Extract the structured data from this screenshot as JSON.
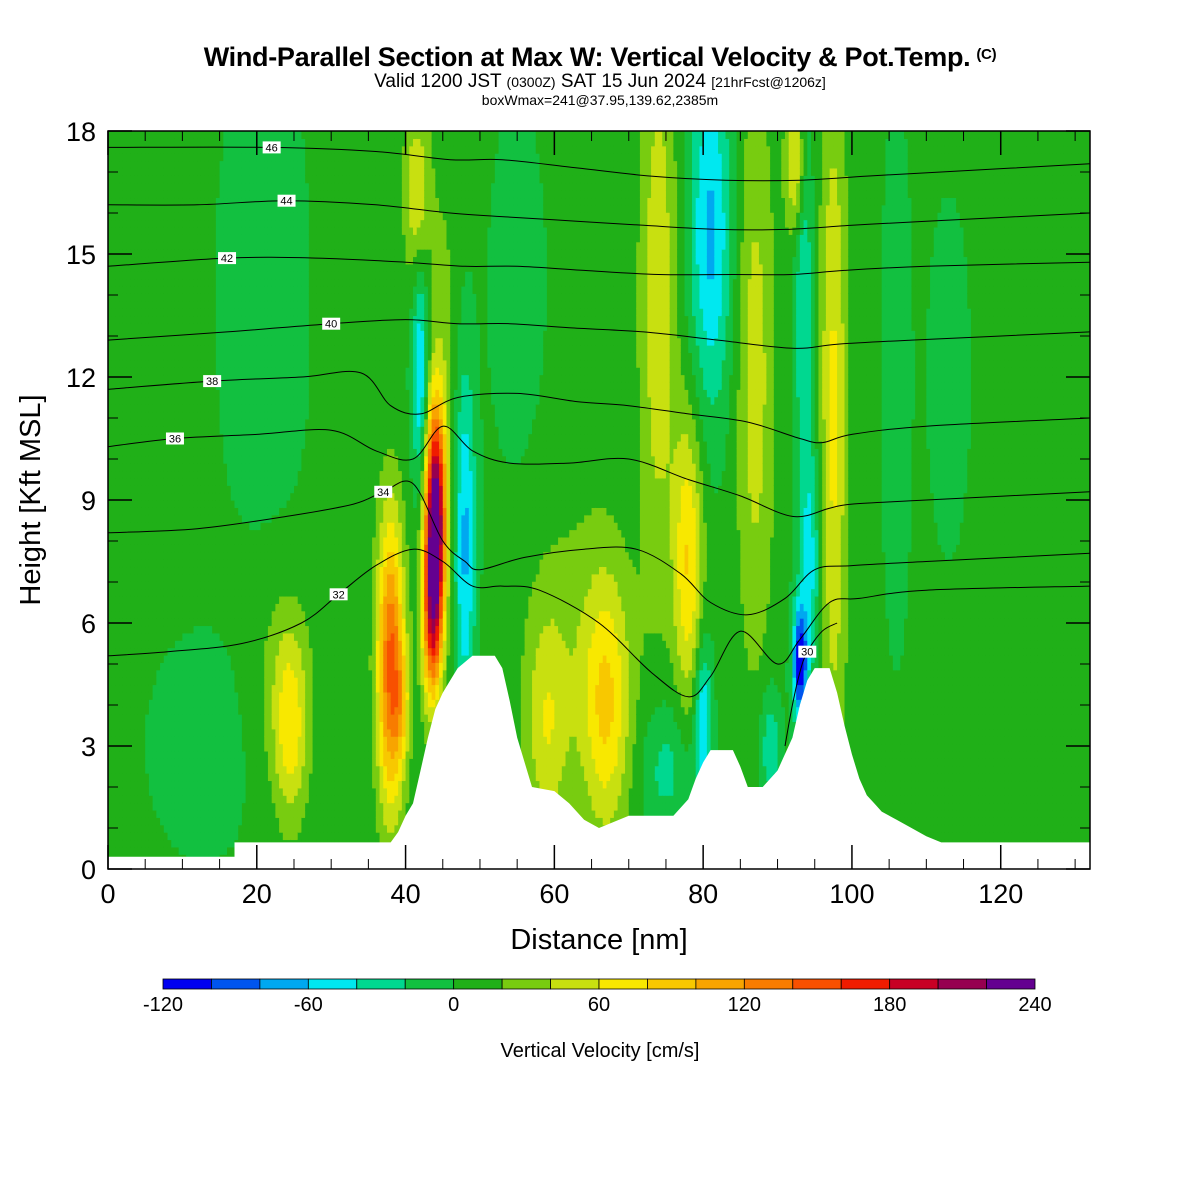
{
  "header": {
    "title": "Wind-Parallel Section at Max W: Vertical Velocity & Pot.Temp.",
    "title_mark": "(C)",
    "valid_prefix": "Valid 1200 JST",
    "valid_utc": "(0300Z)",
    "valid_date": "SAT 15 Jun 2024",
    "forecast": "[21hrFcst@1206z]",
    "box_info": "boxWmax=241@37.95,139.62,2385m"
  },
  "chart_data": {
    "type": "heatmap",
    "xlabel": "Distance [nm]",
    "ylabel": "Height [Kft MSL]",
    "xlim": [
      0,
      132
    ],
    "ylim": [
      0,
      18
    ],
    "x_ticks": [
      "0",
      "20",
      "40",
      "60",
      "80",
      "100",
      "120"
    ],
    "x_tick_values": [
      0,
      20,
      40,
      60,
      80,
      100,
      120
    ],
    "y_ticks": [
      "0",
      "3",
      "6",
      "9",
      "12",
      "15",
      "18"
    ],
    "y_tick_values": [
      0,
      3,
      6,
      9,
      12,
      15,
      18
    ],
    "colorbar": {
      "title": "Vertical Velocity [cm/s]",
      "levels": [
        -120,
        -100,
        -80,
        -60,
        -40,
        -20,
        0,
        20,
        40,
        60,
        80,
        100,
        120,
        140,
        160,
        180,
        200,
        220,
        240
      ],
      "tick_labels": [
        "-120",
        "-60",
        "0",
        "60",
        "120",
        "180",
        "240"
      ],
      "tick_values": [
        -120,
        -60,
        0,
        60,
        120,
        180,
        240
      ],
      "colors": [
        "#0000f0",
        "#0055ee",
        "#00a8f0",
        "#00e8f0",
        "#00d890",
        "#12c040",
        "#20b018",
        "#78cc10",
        "#c8e010",
        "#f8e800",
        "#f8c800",
        "#f8a400",
        "#f87c00",
        "#f85000",
        "#f01c00",
        "#c80024",
        "#960050",
        "#640090"
      ]
    },
    "velocity_background_cm_s": 5,
    "velocity_features": [
      {
        "x": 44,
        "y": 8.5,
        "sx": 1.0,
        "sy": 2.0,
        "w": 240
      },
      {
        "x": 43.5,
        "y": 6.0,
        "sx": 0.9,
        "sy": 1.5,
        "w": 110
      },
      {
        "x": 38,
        "y": 5.0,
        "sx": 1.3,
        "sy": 2.5,
        "w": 140
      },
      {
        "x": 39.5,
        "y": 4.0,
        "sx": 0.8,
        "sy": 1.0,
        "w": 40
      },
      {
        "x": 48,
        "y": 8.0,
        "sx": 1.0,
        "sy": 3.0,
        "w": -70
      },
      {
        "x": 42,
        "y": 12.0,
        "sx": 0.8,
        "sy": 2.0,
        "w": -70
      },
      {
        "x": 41.5,
        "y": 16.5,
        "sx": 1.2,
        "sy": 1.5,
        "w": 55
      },
      {
        "x": 45,
        "y": 13.5,
        "sx": 1.5,
        "sy": 3.0,
        "w": 20
      },
      {
        "x": 24.5,
        "y": 3.5,
        "sx": 1.6,
        "sy": 1.6,
        "w": 60
      },
      {
        "x": 23,
        "y": 4.5,
        "sx": 3.5,
        "sy": 2.0,
        "w": 20
      },
      {
        "x": 13,
        "y": 3.0,
        "sx": 5.0,
        "sy": 1.8,
        "w": -18
      },
      {
        "x": 21,
        "y": 14.0,
        "sx": 4.0,
        "sy": 4.0,
        "w": -20
      },
      {
        "x": 33,
        "y": 15.0,
        "sx": 2.5,
        "sy": 3.0,
        "w": 15
      },
      {
        "x": 59,
        "y": 3.5,
        "sx": 2.0,
        "sy": 2.0,
        "w": 45
      },
      {
        "x": 67,
        "y": 4.0,
        "sx": 2.3,
        "sy": 2.2,
        "w": 70
      },
      {
        "x": 63,
        "y": 5.5,
        "sx": 5.0,
        "sy": 3.0,
        "w": 20
      },
      {
        "x": 78,
        "y": 7.5,
        "sx": 1.4,
        "sy": 2.5,
        "w": 75
      },
      {
        "x": 80,
        "y": 3.5,
        "sx": 0.8,
        "sy": 1.5,
        "w": -70
      },
      {
        "x": 75,
        "y": 2.5,
        "sx": 2.5,
        "sy": 1.2,
        "w": -35
      },
      {
        "x": 89,
        "y": 3.0,
        "sx": 1.0,
        "sy": 1.0,
        "w": -45
      },
      {
        "x": 93,
        "y": 5.0,
        "sx": 0.7,
        "sy": 1.0,
        "w": -120
      },
      {
        "x": 94.5,
        "y": 7.5,
        "sx": 1.0,
        "sy": 2.0,
        "w": -50
      },
      {
        "x": 97.5,
        "y": 11.0,
        "sx": 1.3,
        "sy": 6.0,
        "w": 60
      },
      {
        "x": 93.5,
        "y": 14.5,
        "sx": 0.9,
        "sy": 4.0,
        "w": -45
      },
      {
        "x": 81,
        "y": 15.5,
        "sx": 2.0,
        "sy": 3.0,
        "w": -70
      },
      {
        "x": 74,
        "y": 14.0,
        "sx": 1.8,
        "sy": 5.0,
        "w": 50
      },
      {
        "x": 87,
        "y": 12.0,
        "sx": 1.8,
        "sy": 5.0,
        "w": 45
      },
      {
        "x": 92.5,
        "y": 17.2,
        "sx": 1.0,
        "sy": 1.2,
        "w": 70
      },
      {
        "x": 106,
        "y": 12.0,
        "sx": 1.2,
        "sy": 4.0,
        "w": -25
      },
      {
        "x": 113,
        "y": 12.0,
        "sx": 2.0,
        "sy": 3.0,
        "w": -15
      },
      {
        "x": 55,
        "y": 14.0,
        "sx": 2.5,
        "sy": 3.0,
        "w": -18
      }
    ],
    "theta_contours": [
      {
        "label": "30",
        "label_pos": [
          94,
          5.3
        ],
        "points": [
          [
            91,
            3.0
          ],
          [
            92,
            4.0
          ],
          [
            93,
            4.8
          ],
          [
            94,
            5.3
          ],
          [
            96,
            5.8
          ],
          [
            98,
            6.0
          ]
        ]
      },
      {
        "label": "32",
        "label_pos": [
          31,
          6.7
        ],
        "points": [
          [
            0,
            5.2
          ],
          [
            8,
            5.3
          ],
          [
            18,
            5.5
          ],
          [
            26,
            6.0
          ],
          [
            31,
            6.7
          ],
          [
            36,
            7.4
          ],
          [
            41,
            7.8
          ],
          [
            45,
            7.5
          ],
          [
            49,
            6.9
          ],
          [
            53,
            6.9
          ],
          [
            58,
            6.8
          ],
          [
            66,
            6.0
          ],
          [
            73,
            4.8
          ],
          [
            78,
            4.2
          ],
          [
            81,
            4.7
          ],
          [
            85,
            5.8
          ],
          [
            90,
            5.0
          ],
          [
            93,
            5.6
          ],
          [
            97,
            6.5
          ],
          [
            101,
            6.6
          ],
          [
            110,
            6.8
          ],
          [
            132,
            6.9
          ]
        ]
      },
      {
        "label": "34",
        "label_pos": [
          37,
          9.2
        ],
        "points": [
          [
            0,
            8.2
          ],
          [
            12,
            8.3
          ],
          [
            24,
            8.6
          ],
          [
            33,
            8.9
          ],
          [
            37,
            9.2
          ],
          [
            41,
            9.4
          ],
          [
            45,
            8.0
          ],
          [
            48,
            7.5
          ],
          [
            50,
            7.3
          ],
          [
            56,
            7.6
          ],
          [
            64,
            7.8
          ],
          [
            71,
            7.8
          ],
          [
            77,
            7.2
          ],
          [
            81,
            6.5
          ],
          [
            86,
            6.2
          ],
          [
            91,
            6.6
          ],
          [
            95,
            7.3
          ],
          [
            100,
            7.4
          ],
          [
            110,
            7.5
          ],
          [
            132,
            7.7
          ]
        ]
      },
      {
        "label": "36",
        "label_pos": [
          9,
          10.5
        ],
        "points": [
          [
            0,
            10.3
          ],
          [
            9,
            10.5
          ],
          [
            20,
            10.6
          ],
          [
            30,
            10.7
          ],
          [
            36,
            10.2
          ],
          [
            41,
            10.0
          ],
          [
            45,
            10.8
          ],
          [
            49,
            10.2
          ],
          [
            54,
            9.9
          ],
          [
            62,
            9.9
          ],
          [
            70,
            10.0
          ],
          [
            78,
            9.5
          ],
          [
            85,
            9.1
          ],
          [
            92,
            8.6
          ],
          [
            97,
            8.8
          ],
          [
            100,
            8.9
          ],
          [
            110,
            9.0
          ],
          [
            132,
            9.2
          ]
        ]
      },
      {
        "label": "38",
        "label_pos": [
          14,
          11.9
        ],
        "points": [
          [
            0,
            11.7
          ],
          [
            14,
            11.9
          ],
          [
            26,
            12.0
          ],
          [
            34,
            12.1
          ],
          [
            38,
            11.3
          ],
          [
            42,
            11.1
          ],
          [
            47,
            11.5
          ],
          [
            55,
            11.6
          ],
          [
            63,
            11.4
          ],
          [
            70,
            11.3
          ],
          [
            78,
            11.1
          ],
          [
            86,
            10.9
          ],
          [
            93,
            10.5
          ],
          [
            96,
            10.4
          ],
          [
            100,
            10.6
          ],
          [
            110,
            10.8
          ],
          [
            132,
            11.0
          ]
        ]
      },
      {
        "label": "40",
        "label_pos": [
          30,
          13.3
        ],
        "points": [
          [
            0,
            12.9
          ],
          [
            16,
            13.1
          ],
          [
            30,
            13.3
          ],
          [
            40,
            13.4
          ],
          [
            47,
            13.3
          ],
          [
            54,
            13.3
          ],
          [
            62,
            13.2
          ],
          [
            72,
            13.1
          ],
          [
            82,
            12.9
          ],
          [
            92,
            12.7
          ],
          [
            98,
            12.8
          ],
          [
            108,
            12.9
          ],
          [
            132,
            13.1
          ]
        ]
      },
      {
        "label": "42",
        "label_pos": [
          16,
          14.9
        ],
        "points": [
          [
            0,
            14.7
          ],
          [
            16,
            14.9
          ],
          [
            28,
            14.9
          ],
          [
            40,
            14.8
          ],
          [
            48,
            14.7
          ],
          [
            55,
            14.7
          ],
          [
            64,
            14.6
          ],
          [
            74,
            14.5
          ],
          [
            84,
            14.5
          ],
          [
            92,
            14.5
          ],
          [
            99,
            14.6
          ],
          [
            110,
            14.7
          ],
          [
            132,
            14.8
          ]
        ]
      },
      {
        "label": "44",
        "label_pos": [
          24,
          16.3
        ],
        "points": [
          [
            0,
            16.2
          ],
          [
            12,
            16.2
          ],
          [
            24,
            16.3
          ],
          [
            36,
            16.2
          ],
          [
            46,
            16.0
          ],
          [
            54,
            15.9
          ],
          [
            63,
            15.8
          ],
          [
            72,
            15.7
          ],
          [
            82,
            15.6
          ],
          [
            91,
            15.6
          ],
          [
            100,
            15.7
          ],
          [
            110,
            15.8
          ],
          [
            132,
            16.0
          ]
        ]
      },
      {
        "label": "46",
        "label_pos": [
          22,
          17.6
        ],
        "points": [
          [
            0,
            17.6
          ],
          [
            22,
            17.6
          ],
          [
            36,
            17.5
          ],
          [
            46,
            17.3
          ],
          [
            53,
            17.3
          ],
          [
            63,
            17.1
          ],
          [
            73,
            16.9
          ],
          [
            83,
            16.8
          ],
          [
            93,
            16.8
          ],
          [
            102,
            16.9
          ],
          [
            112,
            17.0
          ],
          [
            132,
            17.2
          ]
        ]
      }
    ],
    "terrain_ft_kft": [
      [
        0,
        0.3
      ],
      [
        17,
        0.3
      ],
      [
        17,
        0.65
      ],
      [
        38,
        0.65
      ],
      [
        39,
        0.9
      ],
      [
        40,
        1.3
      ],
      [
        41,
        1.6
      ],
      [
        42,
        2.4
      ],
      [
        43,
        3.2
      ],
      [
        44,
        3.9
      ],
      [
        45,
        4.3
      ],
      [
        46,
        4.6
      ],
      [
        47,
        4.9
      ],
      [
        49,
        5.2
      ],
      [
        52,
        5.2
      ],
      [
        53,
        4.9
      ],
      [
        54,
        4.1
      ],
      [
        55,
        3.2
      ],
      [
        56,
        2.6
      ],
      [
        57,
        2.0
      ],
      [
        60,
        1.9
      ],
      [
        62,
        1.6
      ],
      [
        64,
        1.2
      ],
      [
        66,
        1.0
      ],
      [
        70,
        1.3
      ],
      [
        76,
        1.3
      ],
      [
        78,
        1.7
      ],
      [
        79,
        2.2
      ],
      [
        80,
        2.6
      ],
      [
        81,
        2.9
      ],
      [
        84,
        2.9
      ],
      [
        85,
        2.5
      ],
      [
        86,
        2.0
      ],
      [
        88,
        2.0
      ],
      [
        90,
        2.4
      ],
      [
        92,
        3.2
      ],
      [
        93,
        4.0
      ],
      [
        94,
        4.6
      ],
      [
        95,
        4.9
      ],
      [
        97,
        4.9
      ],
      [
        98,
        4.3
      ],
      [
        99,
        3.5
      ],
      [
        100,
        2.8
      ],
      [
        101,
        2.2
      ],
      [
        102,
        1.8
      ],
      [
        103,
        1.6
      ],
      [
        104,
        1.4
      ],
      [
        106,
        1.2
      ],
      [
        108,
        1.0
      ],
      [
        110,
        0.8
      ],
      [
        112,
        0.65
      ],
      [
        132,
        0.65
      ]
    ]
  }
}
